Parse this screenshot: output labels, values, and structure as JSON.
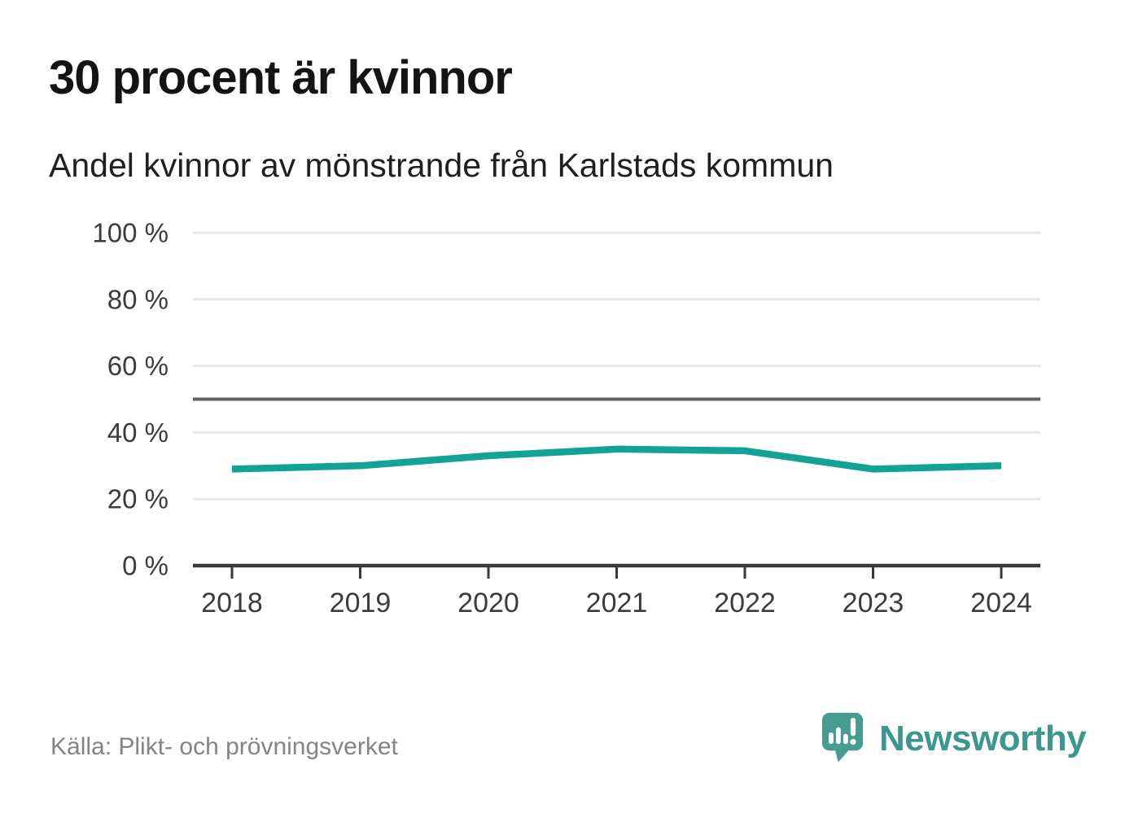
{
  "title": "30 procent är kvinnor",
  "subtitle": "Andel kvinnor av mönstrande från Karlstads kommun",
  "source": "Källa: Plikt- och prövningsverket",
  "brand": {
    "name": "Newsworthy",
    "logo_icon": "newsworthy-speech-bubble-bar-chart-icon",
    "text_color": "#3e978d",
    "bubble_color": "#479c92"
  },
  "colors": {
    "line": "#12a296",
    "grid": "#e6e6e6",
    "reference_line": "#5f6368",
    "axis": "#383838",
    "axis_text": "#3c3c3c"
  },
  "chart_data": {
    "type": "line",
    "title": "30 procent är kvinnor",
    "subtitle": "Andel kvinnor av mönstrande från Karlstads kommun",
    "categories": [
      "2018",
      "2019",
      "2020",
      "2021",
      "2022",
      "2023",
      "2024"
    ],
    "series": [
      {
        "name": "Andel kvinnor av mönstrande",
        "values": [
          29,
          30,
          33,
          35,
          34.5,
          29,
          30
        ]
      }
    ],
    "unit": "%",
    "ylim": [
      0,
      100
    ],
    "y_ticks": [
      0,
      20,
      40,
      60,
      80,
      100
    ],
    "y_tick_labels": [
      "0 %",
      "20 %",
      "40 %",
      "60 %",
      "80 %",
      "100 %"
    ],
    "reference_line": 50,
    "grid": "horizontal",
    "legend": "none",
    "xlabel": "",
    "ylabel": ""
  }
}
